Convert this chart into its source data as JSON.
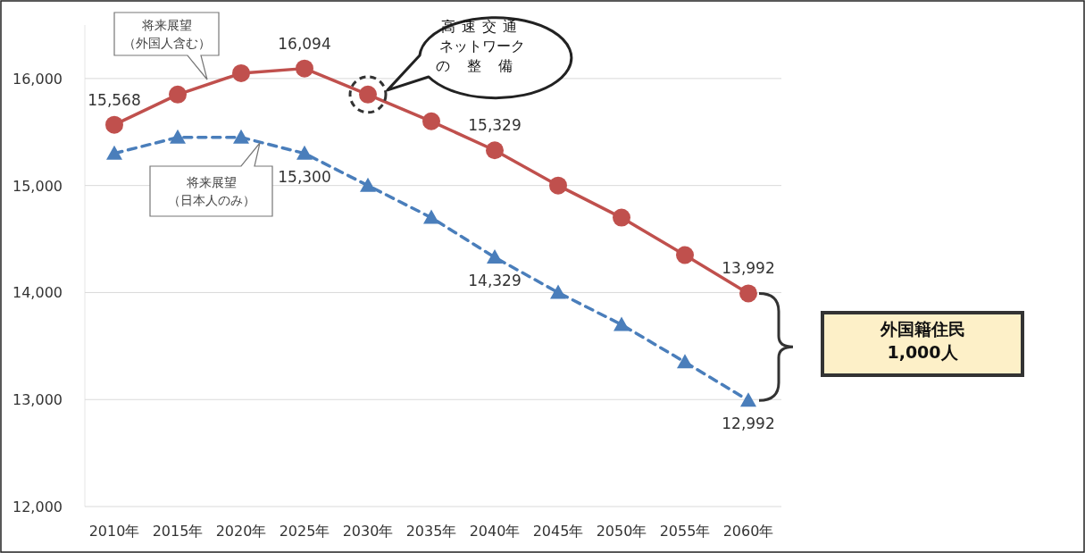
{
  "chart_data": {
    "type": "line",
    "categories": [
      "2010年",
      "2015年",
      "2020年",
      "2025年",
      "2030年",
      "2035年",
      "2040年",
      "2045年",
      "2050年",
      "2055年",
      "2060年"
    ],
    "series": [
      {
        "name": "将来展望（外国人含む）",
        "color": "#c0504d",
        "marker": "circle",
        "line_style": "solid",
        "values": [
          15568,
          15850,
          16050,
          16094,
          15850,
          15600,
          15329,
          15000,
          14700,
          14350,
          13992
        ],
        "value_labels": [
          "15,568",
          null,
          null,
          "16,094",
          null,
          null,
          "15,329",
          null,
          null,
          null,
          "13,992"
        ]
      },
      {
        "name": "将来展望（日本人のみ）",
        "color": "#4a7ebb",
        "marker": "triangle",
        "line_style": "dashed",
        "values": [
          15300,
          15450,
          15450,
          15300,
          15000,
          14700,
          14329,
          14000,
          13700,
          13350,
          12992
        ],
        "value_labels": [
          null,
          null,
          null,
          "15,300",
          null,
          null,
          "14,329",
          null,
          null,
          null,
          "12,992"
        ]
      }
    ],
    "ylim": [
      12000,
      16500
    ],
    "yticks": [
      {
        "value": 12000,
        "label": "12,000"
      },
      {
        "value": 13000,
        "label": "13,000"
      },
      {
        "value": 14000,
        "label": "14,000"
      },
      {
        "value": 15000,
        "label": "15,000"
      },
      {
        "value": 16000,
        "label": "16,000"
      }
    ],
    "grid": "y",
    "annotations": [
      "高速交通ネットワークの整備",
      "外国籍住民1,000人"
    ]
  }
}
